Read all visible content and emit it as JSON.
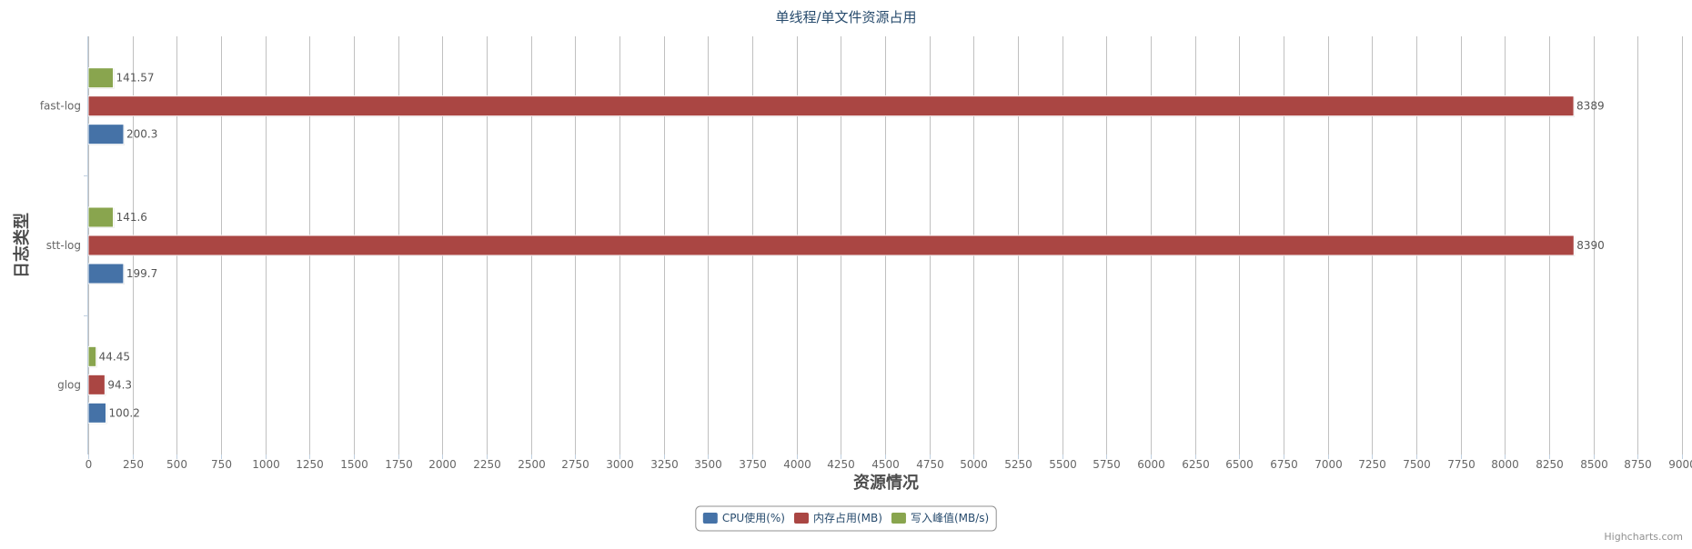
{
  "chart_data": {
    "type": "bar",
    "orientation": "horizontal",
    "title": "单线程/单文件资源占用",
    "xlabel": "资源情况",
    "ylabel": "日志类型",
    "categories": [
      "fast-log",
      "stt-log",
      "glog"
    ],
    "series": [
      {
        "name": "CPU使用(%)",
        "color": "#4572a7",
        "values": [
          200.3,
          199.7,
          100.2
        ],
        "labels": [
          "200.3",
          "199.7",
          "100.2"
        ]
      },
      {
        "name": "内存占用(MB)",
        "color": "#aa4643",
        "values": [
          8389,
          8390,
          94.3
        ],
        "labels": [
          "8389",
          "8390",
          "94.3"
        ]
      },
      {
        "name": "写入峰值(MB/s)",
        "color": "#89a54e",
        "values": [
          141.57,
          141.6,
          44.45
        ],
        "labels": [
          "141.57",
          "141.6",
          "44.45"
        ]
      }
    ],
    "xlim": [
      0,
      9000
    ],
    "x_ticks": [
      0,
      250,
      500,
      750,
      1000,
      1250,
      1500,
      1750,
      2000,
      2250,
      2500,
      2750,
      3000,
      3250,
      3500,
      3750,
      4000,
      4250,
      4500,
      4750,
      5000,
      5250,
      5500,
      5750,
      6000,
      6250,
      6500,
      6750,
      7000,
      7250,
      7500,
      7750,
      8000,
      8250,
      8500,
      8750,
      9000
    ],
    "x_tick_labels": [
      "0",
      "250",
      "500",
      "750",
      "1000",
      "1250",
      "1500",
      "1750",
      "2000",
      "2250",
      "2500",
      "2750",
      "3000",
      "3250",
      "3500",
      "3750",
      "4000",
      "4250",
      "4500",
      "4750",
      "5000",
      "5250",
      "5500",
      "5750",
      "6000",
      "6250",
      "6500",
      "6750",
      "7000",
      "7250",
      "7500",
      "7750",
      "8000",
      "8250",
      "8500",
      "8750",
      "9000"
    ],
    "grid": true,
    "legend_position": "bottom-center",
    "credits": "Highcharts.com"
  }
}
